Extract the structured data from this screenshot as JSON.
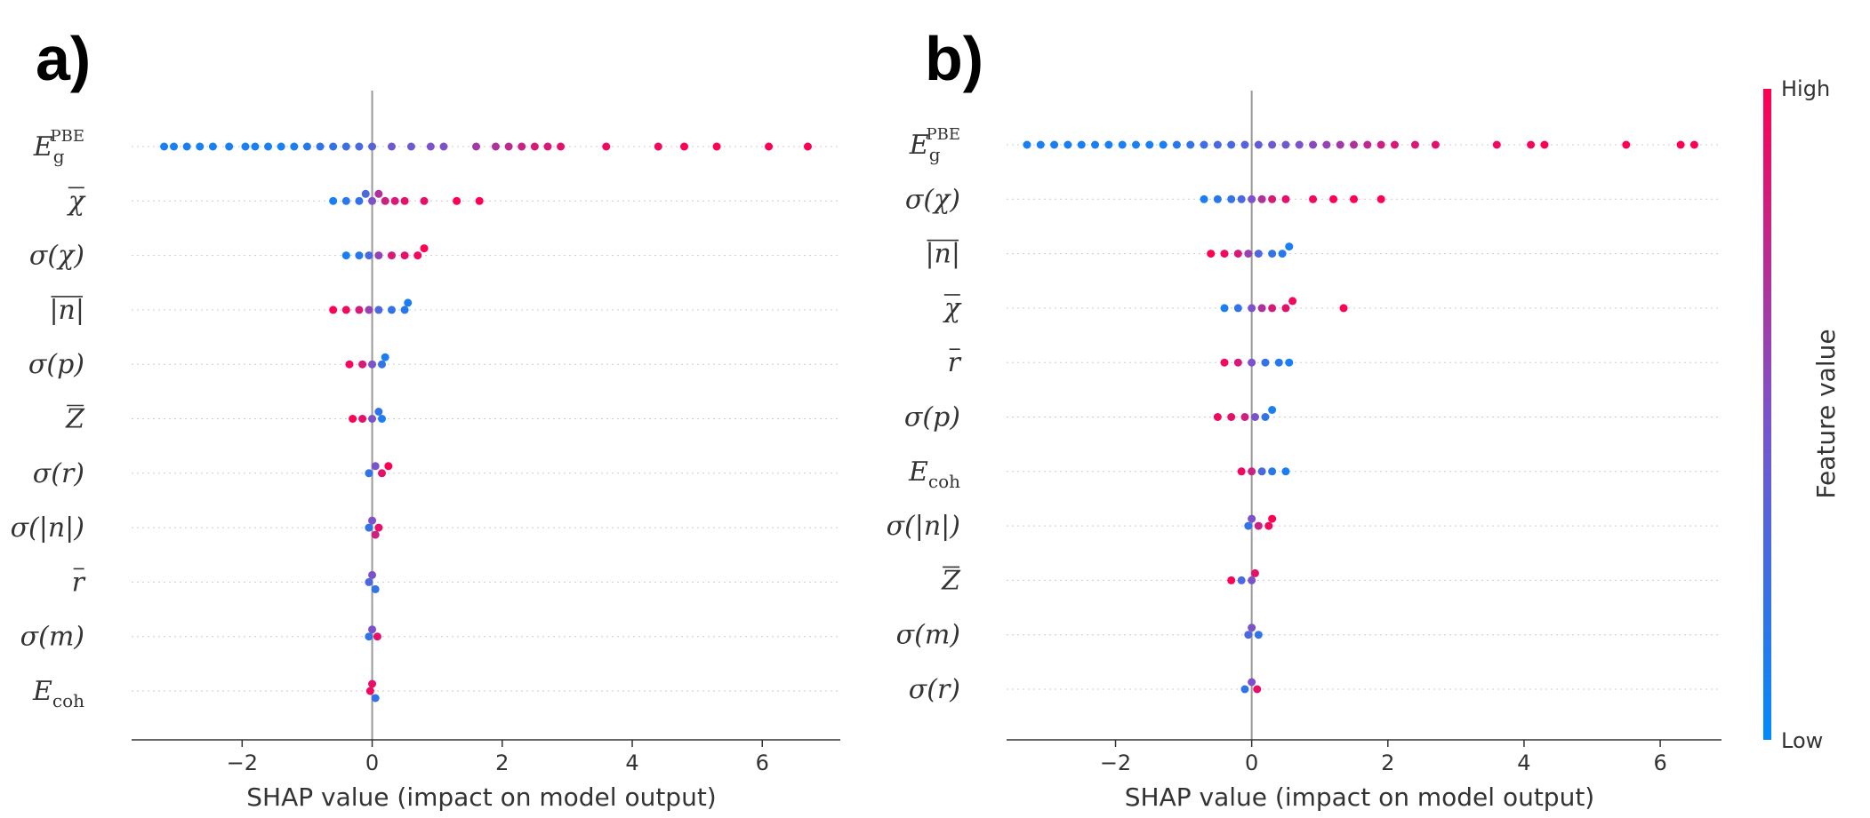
{
  "chart_data": [
    {
      "panel": "a)",
      "type": "scatter",
      "subtype": "shap-beeswarm",
      "xlabel": "SHAP value (impact on model output)",
      "xticks": [
        -2,
        0,
        2,
        4,
        6
      ],
      "xtick_labels": [
        "−2",
        "0",
        "2",
        "4",
        "6"
      ],
      "xlim": [
        -3.7,
        7.2
      ],
      "features": [
        {
          "base": "E",
          "sub": "g",
          "sup": "PBE",
          "bar": false,
          "points": [
            [
              -3.2,
              0.1
            ],
            [
              -3.05,
              0.1
            ],
            [
              -2.85,
              0.1
            ],
            [
              -2.65,
              0.1
            ],
            [
              -2.45,
              0.1
            ],
            [
              -2.2,
              0.1
            ],
            [
              -1.95,
              0.1
            ],
            [
              -1.8,
              0.1
            ],
            [
              -1.6,
              0.1
            ],
            [
              -1.4,
              0.1
            ],
            [
              -1.2,
              0.1
            ],
            [
              -1.0,
              0.15
            ],
            [
              -0.8,
              0.2
            ],
            [
              -0.6,
              0.2
            ],
            [
              -0.4,
              0.25
            ],
            [
              -0.2,
              0.3
            ],
            [
              0.0,
              0.35
            ],
            [
              0.3,
              0.45
            ],
            [
              0.6,
              0.45
            ],
            [
              0.9,
              0.5
            ],
            [
              1.1,
              0.5
            ],
            [
              1.6,
              0.65
            ],
            [
              1.9,
              0.7
            ],
            [
              2.1,
              0.75
            ],
            [
              2.3,
              0.8
            ],
            [
              2.5,
              0.85
            ],
            [
              2.7,
              0.85
            ],
            [
              2.9,
              0.9
            ],
            [
              3.6,
              0.95
            ],
            [
              4.4,
              0.95
            ],
            [
              4.8,
              1.0
            ],
            [
              5.3,
              1.0
            ],
            [
              6.1,
              1.0
            ],
            [
              6.7,
              1.0
            ]
          ]
        },
        {
          "base": "χ",
          "bar": true,
          "points": [
            [
              -0.6,
              0.1
            ],
            [
              -0.4,
              0.15
            ],
            [
              -0.2,
              0.2
            ],
            [
              -0.1,
              0.3
            ],
            [
              0.0,
              0.5
            ],
            [
              0.1,
              0.7
            ],
            [
              0.2,
              0.8
            ],
            [
              0.35,
              0.85
            ],
            [
              0.5,
              0.9
            ],
            [
              0.8,
              0.9
            ],
            [
              1.3,
              1.0
            ],
            [
              1.65,
              1.0
            ]
          ]
        },
        {
          "base": "σ(χ)",
          "bar": false,
          "points": [
            [
              -0.4,
              0.1
            ],
            [
              -0.2,
              0.15
            ],
            [
              -0.05,
              0.3
            ],
            [
              0.1,
              0.6
            ],
            [
              0.3,
              0.85
            ],
            [
              0.5,
              0.9
            ],
            [
              0.7,
              0.95
            ],
            [
              0.8,
              1.0
            ]
          ]
        },
        {
          "base": "|n|",
          "bar": true,
          "points": [
            [
              -0.6,
              1.0
            ],
            [
              -0.4,
              0.95
            ],
            [
              -0.2,
              0.85
            ],
            [
              -0.05,
              0.6
            ],
            [
              0.1,
              0.3
            ],
            [
              0.3,
              0.2
            ],
            [
              0.5,
              0.15
            ],
            [
              0.55,
              0.1
            ]
          ]
        },
        {
          "base": "σ(p)",
          "bar": false,
          "points": [
            [
              -0.35,
              0.95
            ],
            [
              -0.15,
              0.85
            ],
            [
              0.0,
              0.5
            ],
            [
              0.15,
              0.2
            ],
            [
              0.2,
              0.1
            ]
          ]
        },
        {
          "base": "Z",
          "bar": true,
          "points": [
            [
              -0.3,
              1.0
            ],
            [
              -0.15,
              0.9
            ],
            [
              0.0,
              0.5
            ],
            [
              0.1,
              0.2
            ],
            [
              0.15,
              0.1
            ]
          ]
        },
        {
          "base": "σ(r)",
          "bar": false,
          "points": [
            [
              -0.05,
              0.2
            ],
            [
              0.05,
              0.5
            ],
            [
              0.15,
              0.9
            ],
            [
              0.25,
              1.0
            ]
          ]
        },
        {
          "base": "σ(|n|)",
          "bar": false,
          "points": [
            [
              -0.05,
              0.2
            ],
            [
              0.0,
              0.5
            ],
            [
              0.05,
              0.8
            ],
            [
              0.1,
              0.9
            ]
          ]
        },
        {
          "base": "r",
          "bar": true,
          "points": [
            [
              -0.05,
              0.3
            ],
            [
              0.0,
              0.5
            ],
            [
              0.05,
              0.2
            ]
          ]
        },
        {
          "base": "σ(m)",
          "bar": false,
          "points": [
            [
              -0.05,
              0.2
            ],
            [
              0.0,
              0.5
            ],
            [
              0.08,
              0.9
            ]
          ]
        },
        {
          "base": "E",
          "sub": "coh",
          "bar": false,
          "points": [
            [
              -0.03,
              0.95
            ],
            [
              0.0,
              0.9
            ],
            [
              0.05,
              0.2
            ]
          ]
        }
      ]
    },
    {
      "panel": "b)",
      "type": "scatter",
      "subtype": "shap-beeswarm",
      "xlabel": "SHAP value (impact on model output)",
      "xticks": [
        -2,
        0,
        2,
        4,
        6
      ],
      "xtick_labels": [
        "−2",
        "0",
        "2",
        "4",
        "6"
      ],
      "xlim": [
        -3.6,
        6.9
      ],
      "features": [
        {
          "base": "E",
          "sub": "g",
          "sup": "PBE",
          "bar": false,
          "points": [
            [
              -3.3,
              0.1
            ],
            [
              -3.1,
              0.1
            ],
            [
              -2.9,
              0.1
            ],
            [
              -2.7,
              0.1
            ],
            [
              -2.5,
              0.1
            ],
            [
              -2.3,
              0.1
            ],
            [
              -2.1,
              0.1
            ],
            [
              -1.9,
              0.1
            ],
            [
              -1.7,
              0.1
            ],
            [
              -1.5,
              0.1
            ],
            [
              -1.3,
              0.1
            ],
            [
              -1.1,
              0.15
            ],
            [
              -0.9,
              0.2
            ],
            [
              -0.7,
              0.25
            ],
            [
              -0.5,
              0.3
            ],
            [
              -0.3,
              0.3
            ],
            [
              -0.1,
              0.35
            ],
            [
              0.1,
              0.4
            ],
            [
              0.3,
              0.45
            ],
            [
              0.5,
              0.45
            ],
            [
              0.7,
              0.5
            ],
            [
              0.9,
              0.55
            ],
            [
              1.1,
              0.6
            ],
            [
              1.3,
              0.65
            ],
            [
              1.5,
              0.7
            ],
            [
              1.7,
              0.75
            ],
            [
              1.9,
              0.8
            ],
            [
              2.1,
              0.85
            ],
            [
              2.4,
              0.85
            ],
            [
              2.7,
              0.9
            ],
            [
              3.6,
              0.95
            ],
            [
              4.1,
              0.95
            ],
            [
              4.3,
              1.0
            ],
            [
              5.5,
              1.0
            ],
            [
              6.3,
              1.0
            ],
            [
              6.5,
              1.0
            ]
          ]
        },
        {
          "base": "σ(χ)",
          "bar": false,
          "points": [
            [
              -0.7,
              0.1
            ],
            [
              -0.5,
              0.15
            ],
            [
              -0.3,
              0.2
            ],
            [
              -0.15,
              0.3
            ],
            [
              0.0,
              0.5
            ],
            [
              0.15,
              0.7
            ],
            [
              0.3,
              0.85
            ],
            [
              0.5,
              0.9
            ],
            [
              0.9,
              0.95
            ],
            [
              1.2,
              1.0
            ],
            [
              1.5,
              1.0
            ],
            [
              1.9,
              1.0
            ]
          ]
        },
        {
          "base": "|n|",
          "bar": true,
          "points": [
            [
              -0.6,
              1.0
            ],
            [
              -0.4,
              0.95
            ],
            [
              -0.2,
              0.85
            ],
            [
              -0.05,
              0.6
            ],
            [
              0.1,
              0.3
            ],
            [
              0.3,
              0.2
            ],
            [
              0.45,
              0.15
            ],
            [
              0.55,
              0.1
            ]
          ]
        },
        {
          "base": "χ",
          "bar": true,
          "points": [
            [
              -0.4,
              0.1
            ],
            [
              -0.2,
              0.2
            ],
            [
              0.0,
              0.5
            ],
            [
              0.15,
              0.7
            ],
            [
              0.3,
              0.85
            ],
            [
              0.5,
              0.9
            ],
            [
              0.6,
              0.95
            ],
            [
              1.35,
              1.0
            ]
          ]
        },
        {
          "base": "r",
          "bar": true,
          "points": [
            [
              -0.4,
              0.95
            ],
            [
              -0.2,
              0.85
            ],
            [
              0.0,
              0.5
            ],
            [
              0.2,
              0.2
            ],
            [
              0.4,
              0.15
            ],
            [
              0.55,
              0.1
            ]
          ]
        },
        {
          "base": "σ(p)",
          "bar": false,
          "points": [
            [
              -0.5,
              0.95
            ],
            [
              -0.3,
              0.9
            ],
            [
              -0.1,
              0.8
            ],
            [
              0.05,
              0.5
            ],
            [
              0.2,
              0.2
            ],
            [
              0.3,
              0.1
            ]
          ]
        },
        {
          "base": "E",
          "sub": "coh",
          "bar": false,
          "points": [
            [
              -0.15,
              0.95
            ],
            [
              0.0,
              0.8
            ],
            [
              0.15,
              0.3
            ],
            [
              0.3,
              0.15
            ],
            [
              0.5,
              0.1
            ]
          ]
        },
        {
          "base": "σ(|n|)",
          "bar": false,
          "points": [
            [
              -0.05,
              0.2
            ],
            [
              0.0,
              0.5
            ],
            [
              0.1,
              0.8
            ],
            [
              0.25,
              0.95
            ],
            [
              0.3,
              1.0
            ]
          ]
        },
        {
          "base": "Z",
          "bar": true,
          "points": [
            [
              -0.3,
              1.0
            ],
            [
              -0.15,
              0.3
            ],
            [
              0.0,
              0.5
            ],
            [
              0.05,
              0.9
            ]
          ]
        },
        {
          "base": "σ(m)",
          "bar": false,
          "points": [
            [
              -0.05,
              0.3
            ],
            [
              0.0,
              0.5
            ],
            [
              0.1,
              0.2
            ]
          ]
        },
        {
          "base": "σ(r)",
          "bar": false,
          "points": [
            [
              -0.1,
              0.2
            ],
            [
              0.0,
              0.5
            ],
            [
              0.08,
              0.9
            ]
          ]
        }
      ]
    }
  ],
  "colorbar": {
    "high_label": "High",
    "low_label": "Low",
    "title": "Feature value",
    "color_low": "#008afb",
    "color_mid": "#7c52cc",
    "color_high": "#ff0052"
  }
}
